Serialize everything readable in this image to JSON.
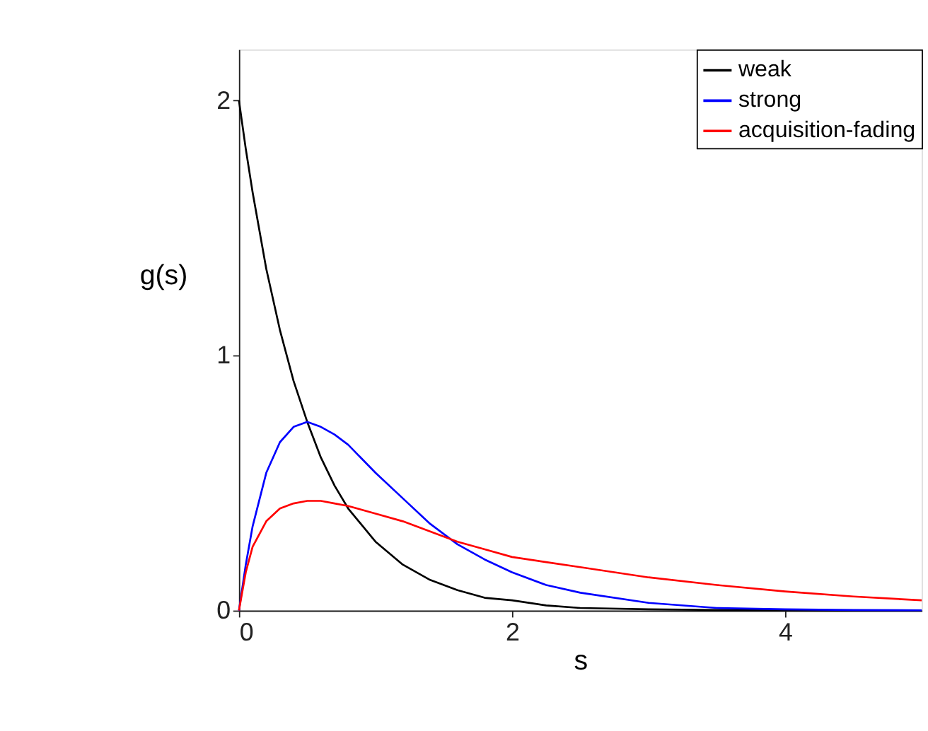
{
  "chart_data": {
    "type": "line",
    "xlabel": "s",
    "ylabel": "g(s)",
    "x": [
      0,
      0.05,
      0.1,
      0.2,
      0.3,
      0.4,
      0.5,
      0.6,
      0.7,
      0.8,
      1,
      1.2,
      1.4,
      1.6,
      1.8,
      2,
      2.25,
      2.5,
      3,
      3.5,
      4,
      4.5,
      5
    ],
    "series": [
      {
        "name": "weak",
        "color": "#000000",
        "values": [
          2,
          1.81,
          1.64,
          1.34,
          1.1,
          0.9,
          0.74,
          0.6,
          0.49,
          0.4,
          0.27,
          0.18,
          0.12,
          0.08,
          0.05,
          0.04,
          0.02,
          0.01,
          0.005,
          0.002,
          0.001,
          0,
          0
        ]
      },
      {
        "name": "strong",
        "color": "#0000ff",
        "values": [
          0,
          0.18,
          0.33,
          0.54,
          0.66,
          0.72,
          0.74,
          0.72,
          0.69,
          0.65,
          0.54,
          0.44,
          0.34,
          0.26,
          0.2,
          0.15,
          0.1,
          0.07,
          0.03,
          0.01,
          0.005,
          0.002,
          0.001
        ]
      },
      {
        "name": "acquisition-fading",
        "color": "#ff0000",
        "values": [
          0,
          0.15,
          0.25,
          0.35,
          0.4,
          0.42,
          0.43,
          0.43,
          0.42,
          0.41,
          0.38,
          0.35,
          0.31,
          0.27,
          0.24,
          0.21,
          0.19,
          0.17,
          0.13,
          0.1,
          0.075,
          0.055,
          0.04
        ]
      }
    ],
    "xlim": [
      0,
      5
    ],
    "ylim": [
      0,
      2.2
    ],
    "xticks": [
      0,
      2,
      4
    ],
    "yticks": [
      0,
      1,
      2
    ],
    "grid": false,
    "legend": "top right",
    "marker": "none",
    "line_style": "solid"
  }
}
